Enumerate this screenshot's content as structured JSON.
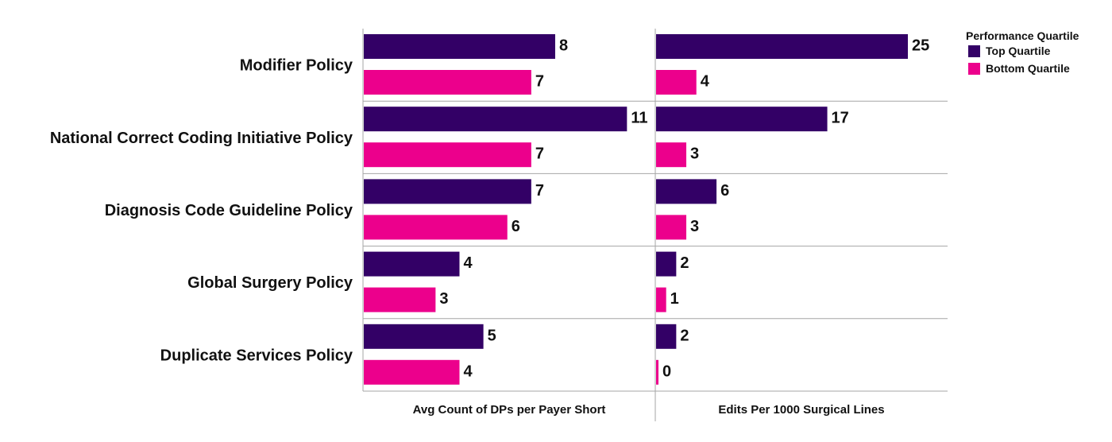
{
  "chart_data": [
    {
      "type": "bar",
      "orientation": "horizontal",
      "xlabel": "Avg Count of DPs per Payer Short",
      "categories": [
        "Modifier Policy",
        "National Correct Coding Initiative Policy",
        "Diagnosis Code Guideline Policy",
        "Global Surgery Policy",
        "Duplicate Services Policy"
      ],
      "series": [
        {
          "name": "Top Quartile",
          "values": [
            8,
            11,
            7,
            4,
            5
          ]
        },
        {
          "name": "Bottom Quartile",
          "values": [
            7,
            7,
            6,
            3,
            4
          ]
        }
      ],
      "xlim": [
        0,
        12.3
      ],
      "grid": false
    },
    {
      "type": "bar",
      "orientation": "horizontal",
      "xlabel": "Edits Per 1000 Surgical Lines",
      "categories": [
        "Modifier Policy",
        "National Correct Coding Initiative Policy",
        "Diagnosis Code Guideline Policy",
        "Global Surgery Policy",
        "Duplicate Services Policy"
      ],
      "series": [
        {
          "name": "Top Quartile",
          "values": [
            25,
            17,
            6,
            2,
            2
          ]
        },
        {
          "name": "Bottom Quartile",
          "values": [
            4,
            3,
            3,
            1,
            0
          ]
        }
      ],
      "xlim": [
        0,
        29.5
      ],
      "grid": false
    }
  ],
  "legend": {
    "title": "Performance Quartile",
    "placement": "top-right",
    "items": [
      {
        "label": "Top Quartile",
        "color": "#330066"
      },
      {
        "label": "Bottom Quartile",
        "color": "#ec008c"
      }
    ]
  },
  "colors": {
    "top": "#330066",
    "bottom": "#ec008c",
    "divider": "#a6a6a6"
  }
}
